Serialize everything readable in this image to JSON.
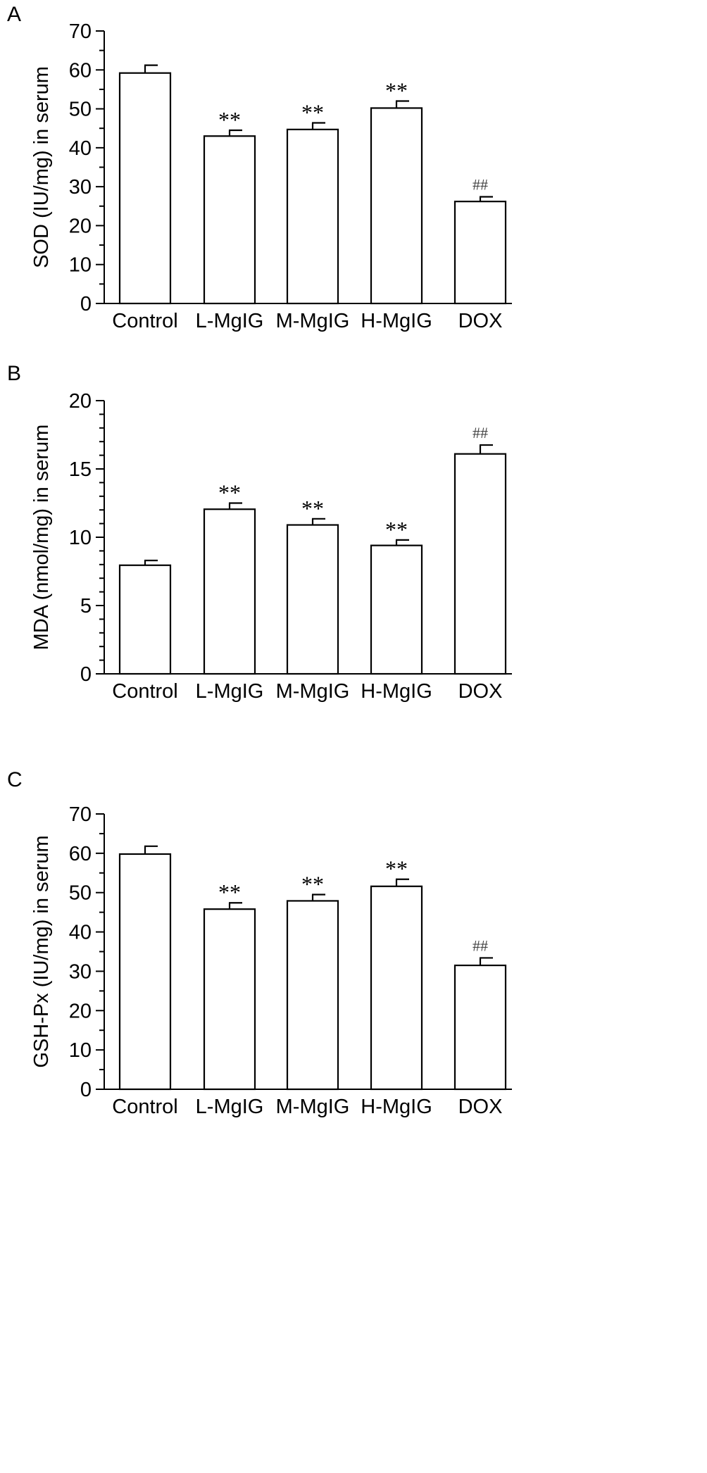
{
  "chart_data": [
    {
      "type": "bar",
      "panel": "A",
      "ylabel": "SOD (IU/mg) in serum",
      "xlabel": "",
      "categories": [
        "Control",
        "L-MgIG",
        "M-MgIG",
        "H-MgIG",
        "DOX"
      ],
      "values": [
        59.2,
        43.0,
        44.7,
        50.2,
        26.2
      ],
      "errors": [
        2.0,
        1.5,
        1.7,
        1.8,
        1.2
      ],
      "significance": [
        "",
        "**",
        "**",
        "**",
        "##"
      ],
      "ylim": [
        0,
        70
      ],
      "yticks": [
        "0",
        "10",
        "20",
        "30",
        "40",
        "50",
        "60",
        "70"
      ],
      "bar_color": "#ffffff",
      "grid": false
    },
    {
      "type": "bar",
      "panel": "B",
      "ylabel": "MDA (nmol/mg) in serum",
      "xlabel": "",
      "categories": [
        "Control",
        "L-MgIG",
        "M-MgIG",
        "H-MgIG",
        "DOX"
      ],
      "values": [
        7.95,
        12.05,
        10.9,
        9.4,
        16.1
      ],
      "errors": [
        0.35,
        0.45,
        0.45,
        0.4,
        0.65
      ],
      "significance": [
        "",
        "**",
        "**",
        "**",
        "##"
      ],
      "ylim": [
        0,
        20
      ],
      "yticks": [
        "0",
        "5",
        "10",
        "15",
        "20"
      ],
      "bar_color": "#ffffff",
      "grid": false
    },
    {
      "type": "bar",
      "panel": "C",
      "ylabel": "GSH-Px (IU/mg) in serum",
      "xlabel": "",
      "categories": [
        "Control",
        "L-MgIG",
        "M-MgIG",
        "H-MgIG",
        "DOX"
      ],
      "values": [
        59.8,
        45.8,
        47.9,
        51.6,
        31.5
      ],
      "errors": [
        2.0,
        1.6,
        1.6,
        1.8,
        1.9
      ],
      "significance": [
        "",
        "**",
        "**",
        "**",
        "##"
      ],
      "ylim": [
        0,
        70
      ],
      "yticks": [
        "0",
        "10",
        "20",
        "30",
        "40",
        "50",
        "60",
        "70"
      ],
      "bar_color": "#ffffff",
      "grid": false
    }
  ]
}
